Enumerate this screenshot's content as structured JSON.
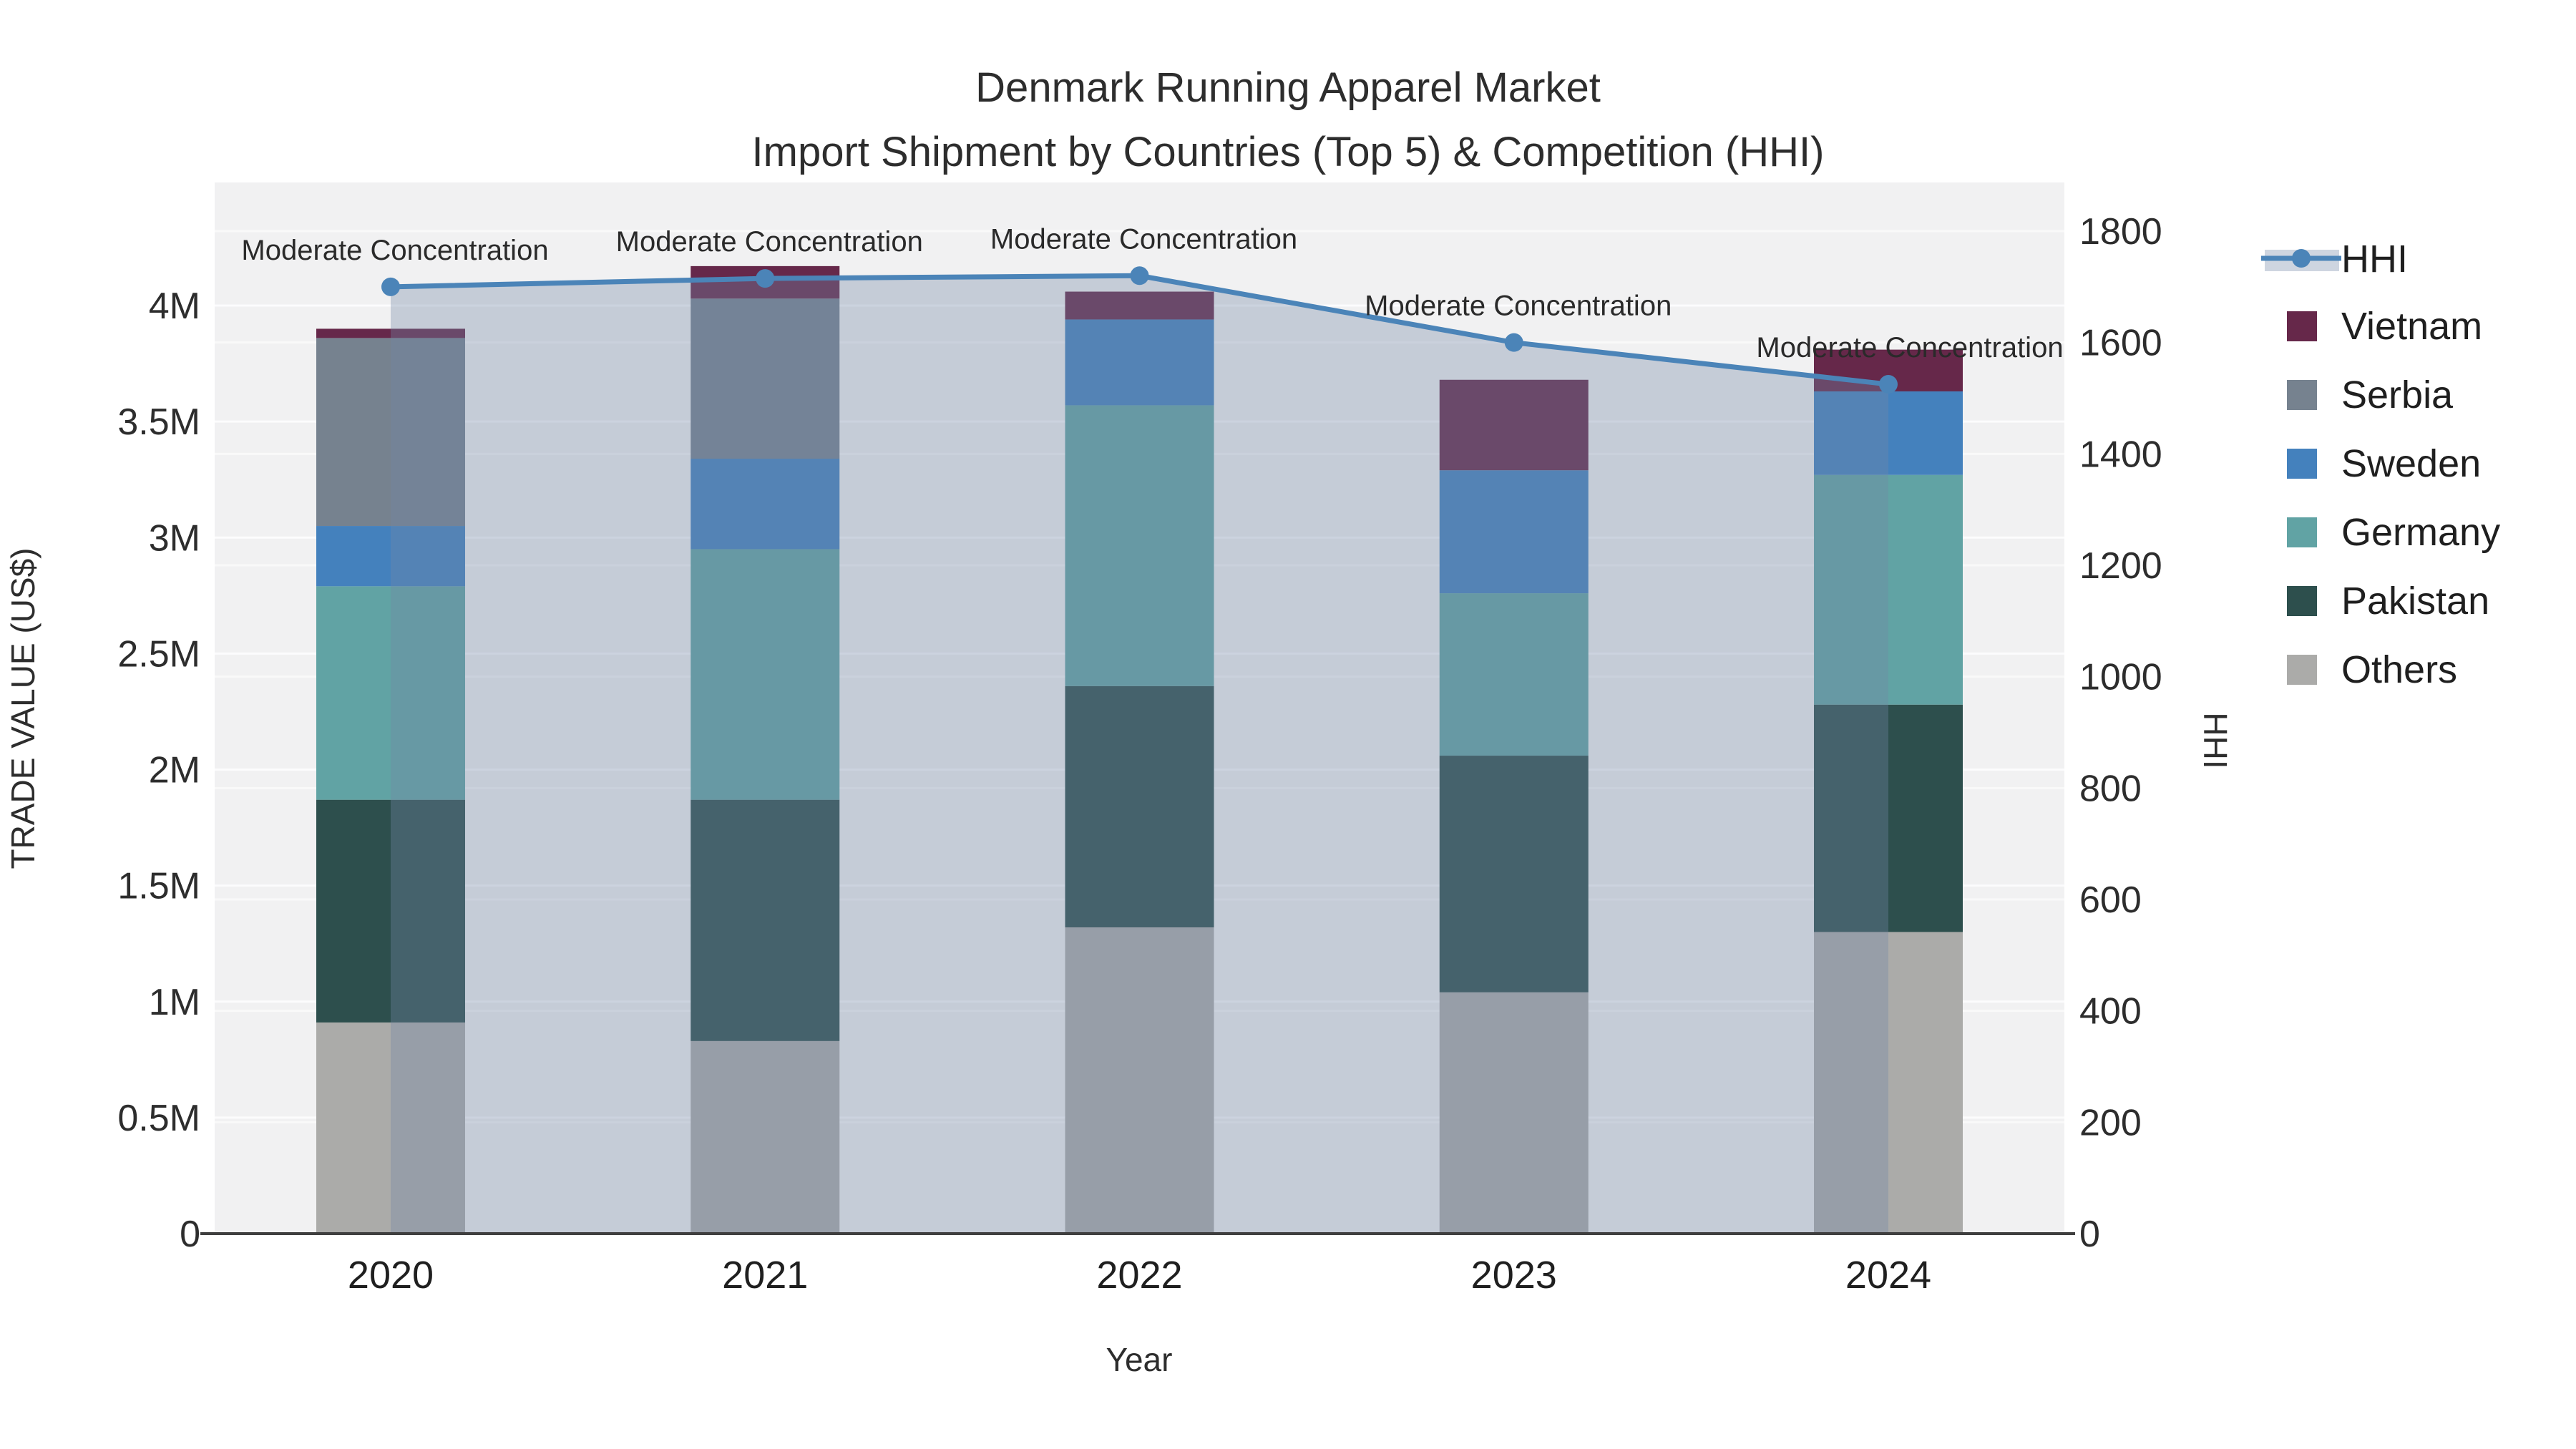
{
  "title": {
    "line1": "Denmark Running Apparel Market",
    "line2": "Import Shipment by Countries (Top 5) & Competition (HHI)"
  },
  "axes": {
    "x": {
      "title": "Year",
      "categories": [
        "2020",
        "2021",
        "2022",
        "2023",
        "2024"
      ]
    },
    "y_left": {
      "title": "TRADE VALUE (US$)",
      "unit": "US$ millions",
      "ticks": [
        {
          "label": "0",
          "value": 0
        },
        {
          "label": "0.5M",
          "value": 0.5
        },
        {
          "label": "1M",
          "value": 1
        },
        {
          "label": "1.5M",
          "value": 1.5
        },
        {
          "label": "2M",
          "value": 2
        },
        {
          "label": "2.5M",
          "value": 2.5
        },
        {
          "label": "3M",
          "value": 3
        },
        {
          "label": "3.5M",
          "value": 3.5
        },
        {
          "label": "4M",
          "value": 4
        }
      ],
      "range": [
        0,
        4.53
      ]
    },
    "y_right": {
      "title": "HHI",
      "ticks": [
        {
          "label": "0",
          "value": 0
        },
        {
          "label": "200",
          "value": 200
        },
        {
          "label": "400",
          "value": 400
        },
        {
          "label": "600",
          "value": 600
        },
        {
          "label": "800",
          "value": 800
        },
        {
          "label": "1000",
          "value": 1000
        },
        {
          "label": "1200",
          "value": 1200
        },
        {
          "label": "1400",
          "value": 1400
        },
        {
          "label": "1600",
          "value": 1600
        },
        {
          "label": "1800",
          "value": 1800
        }
      ],
      "range": [
        0,
        1888
      ]
    }
  },
  "legend": {
    "items": [
      {
        "label": "HHI",
        "type": "line",
        "color": "#4b84b8"
      },
      {
        "label": "Vietnam",
        "type": "swatch",
        "color": "#66284a"
      },
      {
        "label": "Serbia",
        "type": "swatch",
        "color": "#76828f"
      },
      {
        "label": "Sweden",
        "type": "swatch",
        "color": "#4481bd"
      },
      {
        "label": "Germany",
        "type": "swatch",
        "color": "#61a3a4"
      },
      {
        "label": "Pakistan",
        "type": "swatch",
        "color": "#2d4f4d"
      },
      {
        "label": "Others",
        "type": "swatch",
        "color": "#ababa9"
      }
    ]
  },
  "chart_data": {
    "type": "bar+line",
    "categories": [
      "2020",
      "2021",
      "2022",
      "2023",
      "2024"
    ],
    "bar_unit": "US$ millions (trade value)",
    "stack_order_bottom_to_top": [
      "Others",
      "Pakistan",
      "Germany",
      "Sweden",
      "Serbia",
      "Vietnam"
    ],
    "series": [
      {
        "name": "Others",
        "color": "#ababa9",
        "values": [
          0.91,
          0.83,
          1.32,
          1.04,
          1.3
        ]
      },
      {
        "name": "Pakistan",
        "color": "#2d4f4d",
        "values": [
          0.96,
          1.04,
          1.04,
          1.02,
          0.98
        ]
      },
      {
        "name": "Germany",
        "color": "#61a3a4",
        "values": [
          0.92,
          1.08,
          1.21,
          0.7,
          0.99
        ]
      },
      {
        "name": "Sweden",
        "color": "#4481bd",
        "values": [
          0.26,
          0.39,
          0.37,
          0.53,
          0.36
        ]
      },
      {
        "name": "Serbia",
        "color": "#76828f",
        "values": [
          0.81,
          0.69,
          0.0,
          0.0,
          0.0
        ]
      },
      {
        "name": "Vietnam",
        "color": "#66284a",
        "values": [
          0.04,
          0.14,
          0.12,
          0.39,
          0.18
        ]
      }
    ],
    "line": {
      "name": "HHI",
      "axis": "right",
      "values": [
        1700,
        1715,
        1720,
        1600,
        1525
      ],
      "color": "#4b84b8",
      "area_fill": "rgba(115,135,166,0.35)"
    },
    "annotations": [
      {
        "x": "2020",
        "text": "Moderate Concentration"
      },
      {
        "x": "2021",
        "text": "Moderate Concentration"
      },
      {
        "x": "2022",
        "text": "Moderate Concentration"
      },
      {
        "x": "2023",
        "text": "Moderate Concentration"
      },
      {
        "x": "2024",
        "text": "Moderate Concentration"
      }
    ],
    "layout_hints": {
      "plot_bg": "#f1f1f2",
      "grid_color": "rgba(255,255,255,0.8)",
      "legend_position": "right",
      "grid": "on"
    }
  }
}
